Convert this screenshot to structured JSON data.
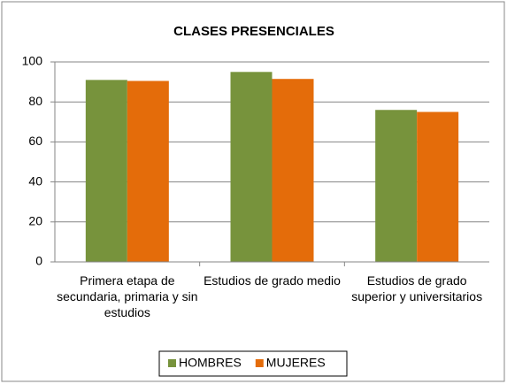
{
  "chart_data": {
    "type": "bar",
    "title": "CLASES PRESENCIALES",
    "categories": [
      "Primera etapa de secundaria, primaria y sin estudios",
      "Estudios de grado medio",
      "Estudios de grado superior y universitarios"
    ],
    "series": [
      {
        "name": "HOMBRES",
        "color": "#77933c",
        "values": [
          91,
          95,
          76
        ]
      },
      {
        "name": "MUJERES",
        "color": "#e46c0a",
        "values": [
          90.5,
          91.5,
          75
        ]
      }
    ],
    "ylim": [
      0,
      100
    ],
    "yticks": [
      0,
      20,
      40,
      60,
      80,
      100
    ],
    "grid": true,
    "legend": "bottom"
  }
}
